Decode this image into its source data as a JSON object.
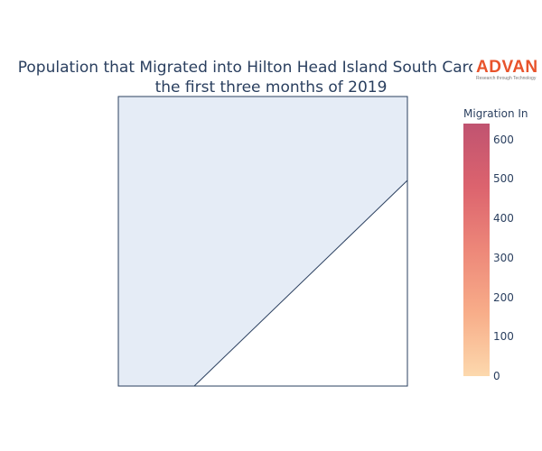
{
  "title": {
    "line1": "Population that Migrated into Hilton Head Island South Carolina in",
    "line2": "the first three months of 2019"
  },
  "logo": {
    "word": "ADVAN",
    "tagline": "Research through Technology",
    "color": "#e8532b"
  },
  "map": {
    "background_color": "#e5ecf6",
    "outline_color": "#2a3f5f",
    "land_color": "#ffffff"
  },
  "colorbar": {
    "title": "Migration In",
    "ticks": [
      "0",
      "100",
      "200",
      "300",
      "400",
      "500",
      "600"
    ],
    "tick_values": [
      0,
      100,
      200,
      300,
      400,
      500,
      600
    ],
    "range": [
      0,
      640
    ],
    "colorscale": [
      "#fcd4a4",
      "#f7a47c",
      "#eb7a6a",
      "#d8525e",
      "#b94060"
    ]
  }
}
